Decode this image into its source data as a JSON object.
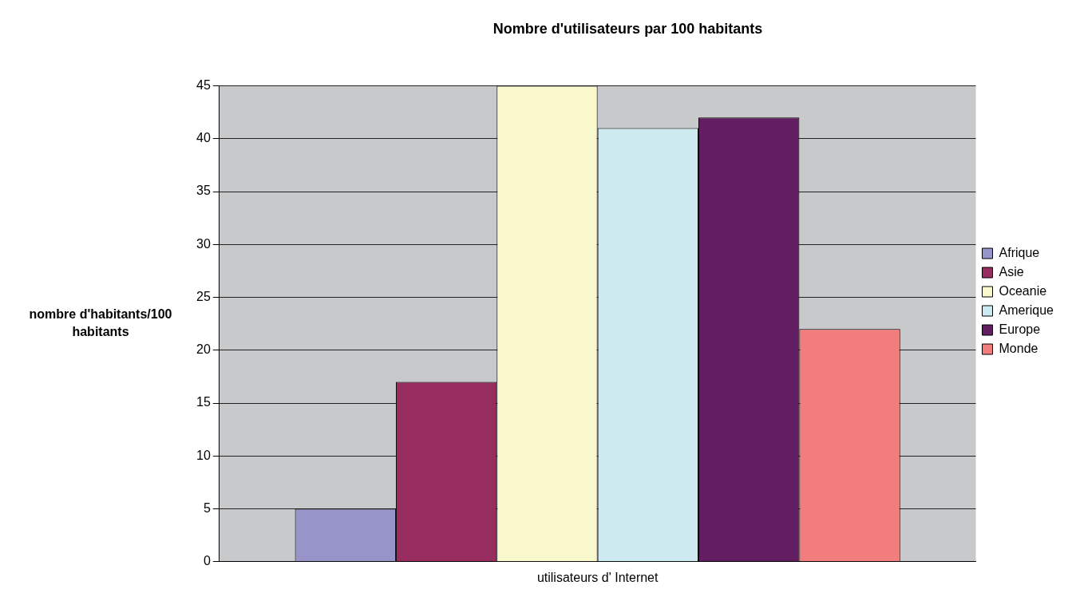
{
  "chart_data": {
    "type": "bar",
    "title": "Nombre d'utilisateurs par 100 habitants",
    "ylabel": "nombre d'habitants/100 habitants",
    "categories": [
      "utilisateurs d' Internet"
    ],
    "series": [
      {
        "name": "Afrique",
        "color": "#9694c9",
        "values": [
          5
        ]
      },
      {
        "name": "Asie",
        "color": "#962d5e",
        "values": [
          17
        ]
      },
      {
        "name": "Oceanie",
        "color": "#f9f8cc",
        "values": [
          45
        ]
      },
      {
        "name": "Amerique",
        "color": "#cdeaf0",
        "values": [
          41
        ]
      },
      {
        "name": "Europe",
        "color": "#621e60",
        "values": [
          42
        ]
      },
      {
        "name": "Monde",
        "color": "#f27d7d",
        "values": [
          22
        ]
      }
    ],
    "ylim": [
      0,
      45
    ],
    "yticks": [
      0,
      5,
      10,
      15,
      20,
      25,
      30,
      35,
      40,
      45
    ],
    "grid": "y",
    "legend": "right"
  }
}
